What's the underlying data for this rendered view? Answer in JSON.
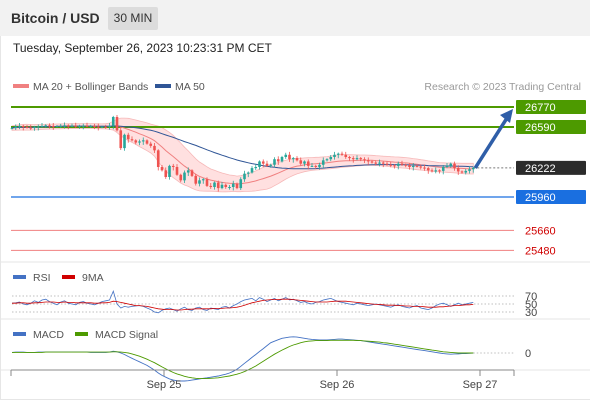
{
  "header": {
    "title": "Bitcoin / USD",
    "interval": "30 MIN",
    "timestamp": "Tuesday, September 26, 2023 10:23:31 PM CET"
  },
  "colors": {
    "bullish": "#26a69a",
    "bearish": "#ef5350",
    "resistance": "#4d9a00",
    "support": "#1a6fe0",
    "target": "#f08080",
    "ma50": "#2f5596",
    "bollinger": "#ffd5d5",
    "rsi": "#4472c4",
    "rsi_ma": "#d00000",
    "macd": "#4472c4",
    "macd_signal": "#4d9a00",
    "current": "#2b2b2b",
    "arrow": "#2f5ea8"
  },
  "chart_data": [
    {
      "type": "line",
      "panel": "price",
      "legend": [
        {
          "name": "MA 20 + Bollinger Bands",
          "color": "#f08080"
        },
        {
          "name": "MA 50",
          "color": "#2f5596"
        }
      ],
      "legend_placement": "top-left",
      "source_note": "Research © 2023 Trading Central",
      "x_ticks": [
        "Sep 25",
        "Sep 26",
        "Sep 27"
      ],
      "levels": [
        {
          "value": 26770,
          "label": "26770",
          "kind": "resistance"
        },
        {
          "value": 26590,
          "label": "26590",
          "kind": "resistance"
        },
        {
          "value": 26222,
          "label": "26222",
          "kind": "current"
        },
        {
          "value": 25960,
          "label": "25960",
          "kind": "support"
        },
        {
          "value": 25660,
          "label": "25660",
          "kind": "target"
        },
        {
          "value": 25480,
          "label": "25480",
          "kind": "target"
        }
      ],
      "forecast_arrow": {
        "from": 26222,
        "to": 26770
      },
      "close": [
        26580,
        26595,
        26600,
        26590,
        26585,
        26580,
        26590,
        26595,
        26600,
        26605,
        26600,
        26595,
        26598,
        26600,
        26605,
        26600,
        26602,
        26598,
        26600,
        26602,
        26598,
        26600,
        26595,
        26590,
        26592,
        26590,
        26600,
        26680,
        26560,
        26400,
        26520,
        26480,
        26470,
        26450,
        26460,
        26470,
        26440,
        26420,
        26380,
        26230,
        26200,
        26140,
        26240,
        26230,
        26160,
        26110,
        26180,
        26200,
        26150,
        26080,
        26110,
        26120,
        26060,
        26050,
        26090,
        26040,
        26070,
        26050,
        26050,
        26080,
        26040,
        26120,
        26170,
        26180,
        26220,
        26230,
        26280,
        26260,
        26240,
        26250,
        26300,
        26280,
        26320,
        26340,
        26300,
        26310,
        26290,
        26260,
        26280,
        26240,
        26240,
        26230,
        26250,
        26290,
        26300,
        26320,
        26340,
        26350,
        26340,
        26320,
        26310,
        26300,
        26310,
        26300,
        26290,
        26280,
        26270,
        26260,
        26270,
        26260,
        26250,
        26245,
        26240,
        26260,
        26250,
        26245,
        26230,
        26240,
        26235,
        26225,
        26220,
        26200,
        26190,
        26200,
        26195,
        26230,
        26240,
        26260,
        26220,
        26190,
        26180,
        26195,
        26210,
        26222
      ],
      "ma20": [
        26580,
        26583,
        26586,
        26588,
        26588,
        26587,
        26588,
        26589,
        26590,
        26592,
        26593,
        26594,
        26595,
        26596,
        26597,
        26598,
        26599,
        26598,
        26598,
        26599,
        26599,
        26599,
        26598,
        26597,
        26596,
        26596,
        26597,
        26602,
        26600,
        26590,
        26580,
        26568,
        26556,
        26543,
        26529,
        26516,
        26502,
        26486,
        26467,
        26438,
        26410,
        26378,
        26351,
        26324,
        26295,
        26265,
        26238,
        26215,
        26189,
        26164,
        26145,
        26133,
        26122,
        26112,
        26105,
        26098,
        26091,
        26087,
        26083,
        26082,
        26078,
        26080,
        26085,
        26090,
        26097,
        26105,
        26116,
        26126,
        26136,
        26148,
        26162,
        26175,
        26190,
        26206,
        26218,
        26229,
        26238,
        26243,
        26250,
        26254,
        26257,
        26260,
        26262,
        26265,
        26268,
        26272,
        26277,
        26281,
        26284,
        26286,
        26287,
        26288,
        26289,
        26290,
        26291,
        26291,
        26290,
        26288,
        26286,
        26283,
        26280,
        26277,
        26274,
        26272,
        26269,
        26267,
        26263,
        26258,
        26254,
        26249,
        26245,
        26240,
        26236,
        26232,
        26228,
        26226,
        26224,
        26223,
        26221,
        26219,
        26217,
        26216,
        26215,
        26215
      ],
      "ma50": [
        26585,
        26586,
        26587,
        26588,
        26588,
        26588,
        26589,
        26590,
        26591,
        26592,
        26593,
        26594,
        26595,
        26596,
        26597,
        26598,
        26598,
        26598,
        26598,
        26598,
        26598,
        26597,
        26597,
        26596,
        26596,
        26596,
        26597,
        26599,
        26599,
        26597,
        26594,
        26591,
        26588,
        26584,
        26579,
        26573,
        26567,
        26560,
        26552,
        26541,
        26530,
        26518,
        26507,
        26496,
        26484,
        26471,
        26459,
        26448,
        26436,
        26424,
        26411,
        26398,
        26385,
        26372,
        26360,
        26348,
        26336,
        26325,
        26314,
        26304,
        26293,
        26284,
        26276,
        26268,
        26261,
        26254,
        26248,
        26242,
        26236,
        26231,
        26227,
        26223,
        26220,
        26218,
        26216,
        26215,
        26214,
        26214,
        26214,
        26214,
        26215,
        26216,
        26218,
        26220,
        26223,
        26226,
        26229,
        26232,
        26235,
        26238,
        26240,
        26242,
        26244,
        26246,
        26248,
        26249,
        26250,
        26251,
        26252,
        26252,
        26252,
        26252,
        26252,
        26251,
        26251,
        26250,
        26249,
        26248,
        26247,
        26246,
        26245,
        26243,
        26242,
        26241,
        26240,
        26240,
        26239,
        26239,
        26238,
        26237,
        26236,
        26235,
        26234,
        26233
      ],
      "bb_width": [
        20,
        22,
        24,
        25,
        26,
        25,
        24,
        23,
        22,
        22,
        22,
        22,
        22,
        22,
        22,
        22,
        22,
        22,
        22,
        22,
        22,
        22,
        22,
        22,
        22,
        24,
        28,
        40,
        60,
        80,
        90,
        100,
        105,
        110,
        115,
        120,
        125,
        130,
        140,
        160,
        175,
        185,
        190,
        190,
        185,
        180,
        170,
        160,
        150,
        140,
        130,
        120,
        110,
        100,
        95,
        90,
        85,
        80,
        75,
        72,
        70,
        72,
        75,
        80,
        85,
        90,
        95,
        100,
        105,
        105,
        100,
        95,
        90,
        85,
        80,
        75,
        70,
        65,
        62,
        60,
        58,
        57,
        56,
        56,
        56,
        57,
        58,
        58,
        58,
        56,
        54,
        52,
        50,
        48,
        47,
        46,
        45,
        44,
        44,
        44,
        45,
        46,
        47,
        48,
        48,
        48,
        48,
        48,
        48,
        47,
        46,
        45,
        44,
        43,
        42,
        42,
        42,
        43,
        44,
        45,
        46,
        47,
        48,
        48
      ]
    },
    {
      "type": "line",
      "panel": "rsi",
      "series": [
        {
          "name": "RSI",
          "color": "#4472c4",
          "values": [
            52,
            53,
            55,
            50,
            48,
            52,
            58,
            54,
            60,
            62,
            56,
            52,
            48,
            55,
            58,
            52,
            50,
            48,
            54,
            56,
            52,
            50,
            48,
            52,
            56,
            58,
            60,
            82,
            50,
            40,
            44,
            42,
            44,
            45,
            46,
            44,
            40,
            36,
            30,
            28,
            34,
            38,
            40,
            36,
            32,
            38,
            42,
            36,
            34,
            40,
            42,
            36,
            34,
            40,
            38,
            36,
            42,
            44,
            40,
            46,
            50,
            56,
            60,
            62,
            64,
            58,
            66,
            62,
            56,
            60,
            64,
            58,
            62,
            66,
            60,
            62,
            58,
            54,
            56,
            52,
            50,
            54,
            56,
            60,
            62,
            64,
            60,
            56,
            54,
            52,
            50,
            48,
            52,
            50,
            48,
            46,
            48,
            50,
            48,
            46,
            44,
            42,
            46,
            48,
            44,
            42,
            40,
            44,
            46,
            40,
            38,
            36,
            40,
            46,
            50,
            52,
            48,
            44,
            48,
            52,
            48,
            50,
            52,
            54
          ]
        },
        {
          "name": "9MA",
          "color": "#d00000",
          "values": [
            52,
            52,
            53,
            53,
            52,
            52,
            53,
            53,
            54,
            55,
            55,
            55,
            54,
            54,
            55,
            54,
            54,
            53,
            53,
            53,
            53,
            53,
            52,
            52,
            53,
            53,
            54,
            57,
            56,
            54,
            52,
            50,
            48,
            46,
            46,
            45,
            44,
            42,
            40,
            38,
            37,
            36,
            36,
            36,
            35,
            35,
            36,
            37,
            37,
            38,
            38,
            38,
            38,
            38,
            39,
            39,
            39,
            40,
            40,
            41,
            42,
            44,
            47,
            50,
            53,
            55,
            57,
            59,
            60,
            61,
            61,
            61,
            62,
            62,
            62,
            61,
            60,
            59,
            58,
            57,
            56,
            55,
            55,
            55,
            55,
            56,
            57,
            57,
            57,
            57,
            56,
            55,
            54,
            53,
            52,
            51,
            50,
            49,
            49,
            48,
            47,
            47,
            47,
            46,
            46,
            45,
            45,
            44,
            44,
            44,
            43,
            42,
            42,
            42,
            43,
            43,
            44,
            45,
            46,
            46,
            47,
            48,
            48,
            49
          ]
        }
      ],
      "levels": [
        70,
        50,
        30
      ],
      "level_labels": [
        "70",
        "50",
        "30"
      ],
      "ylim": [
        0,
        100
      ]
    },
    {
      "type": "line",
      "panel": "macd",
      "series": [
        {
          "name": "MACD",
          "color": "#4472c4",
          "values": [
            2,
            3,
            3,
            3,
            2,
            2,
            2,
            3,
            3,
            3,
            3,
            3,
            3,
            3,
            3,
            3,
            3,
            3,
            3,
            3,
            3,
            2,
            2,
            2,
            2,
            2,
            3,
            6,
            4,
            0,
            -5,
            -12,
            -18,
            -24,
            -30,
            -36,
            -42,
            -50,
            -58,
            -68,
            -76,
            -82,
            -88,
            -92,
            -94,
            -95,
            -95,
            -94,
            -92,
            -90,
            -88,
            -86,
            -84,
            -82,
            -80,
            -78,
            -75,
            -72,
            -68,
            -62,
            -55,
            -45,
            -35,
            -25,
            -15,
            -5,
            5,
            15,
            25,
            35,
            40,
            45,
            50,
            52,
            54,
            55,
            54,
            52,
            50,
            48,
            46,
            45,
            44,
            44,
            44,
            45,
            46,
            47,
            47,
            46,
            45,
            44,
            43,
            42,
            40,
            38,
            36,
            34,
            32,
            30,
            28,
            26,
            24,
            22,
            20,
            18,
            16,
            14,
            12,
            10,
            8,
            6,
            4,
            2,
            0,
            -2,
            -3,
            -4,
            -3,
            -3,
            -2,
            -2,
            -1,
            0
          ]
        },
        {
          "name": "MACD Signal",
          "color": "#4d9a00",
          "values": [
            2,
            2,
            2,
            2,
            2,
            2,
            2,
            2,
            2,
            3,
            3,
            3,
            3,
            3,
            3,
            3,
            3,
            3,
            3,
            3,
            3,
            3,
            3,
            3,
            3,
            3,
            3,
            4,
            4,
            3,
            2,
            0,
            -3,
            -7,
            -11,
            -16,
            -21,
            -27,
            -33,
            -40,
            -47,
            -54,
            -60,
            -66,
            -71,
            -75,
            -79,
            -82,
            -84,
            -86,
            -87,
            -87,
            -87,
            -86,
            -85,
            -84,
            -82,
            -80,
            -78,
            -75,
            -72,
            -68,
            -63,
            -57,
            -51,
            -44,
            -36,
            -28,
            -20,
            -12,
            -4,
            3,
            10,
            16,
            22,
            27,
            31,
            35,
            38,
            40,
            41,
            42,
            42,
            42,
            42,
            43,
            43,
            43,
            43,
            43,
            43,
            43,
            42,
            42,
            41,
            40,
            39,
            38,
            37,
            35,
            34,
            32,
            30,
            28,
            26,
            24,
            22,
            20,
            18,
            16,
            14,
            12,
            10,
            8,
            6,
            4,
            3,
            2,
            1,
            0,
            0,
            0,
            0,
            0
          ]
        }
      ],
      "levels": [
        0
      ],
      "level_labels": [
        "0"
      ],
      "ylim": [
        -100,
        60
      ]
    }
  ]
}
